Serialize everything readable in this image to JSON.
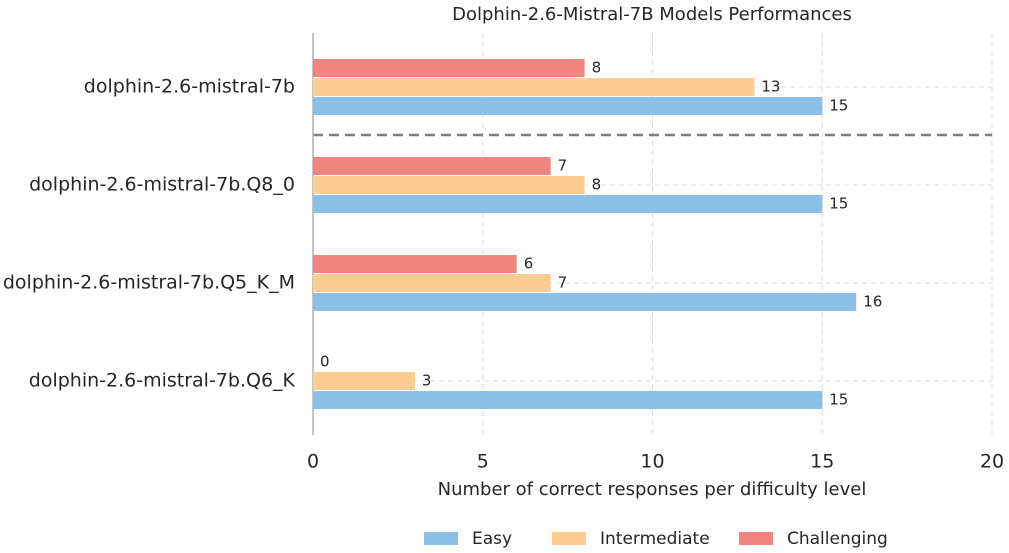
{
  "chart_data": {
    "type": "bar",
    "orientation": "horizontal",
    "title": "Dolphin-2.6-Mistral-7B Models Performances",
    "xlabel": "Number of correct responses per difficulty level",
    "categories": [
      "dolphin-2.6-mistral-7b",
      "dolphin-2.6-mistral-7b.Q8_0",
      "dolphin-2.6-mistral-7b.Q5_K_M",
      "dolphin-2.6-mistral-7b.Q6_K"
    ],
    "series": [
      {
        "name": "Easy",
        "color": "#8cc0e6",
        "values": [
          15,
          15,
          16,
          15
        ]
      },
      {
        "name": "Intermediate",
        "color": "#fdcc91",
        "values": [
          13,
          8,
          7,
          3
        ]
      },
      {
        "name": "Challenging",
        "color": "#f08580",
        "values": [
          8,
          7,
          6,
          0
        ]
      }
    ],
    "xlim": [
      0,
      20
    ],
    "xticks": [
      0,
      5,
      10,
      15,
      20
    ],
    "grid": true,
    "legend": "bottom"
  }
}
